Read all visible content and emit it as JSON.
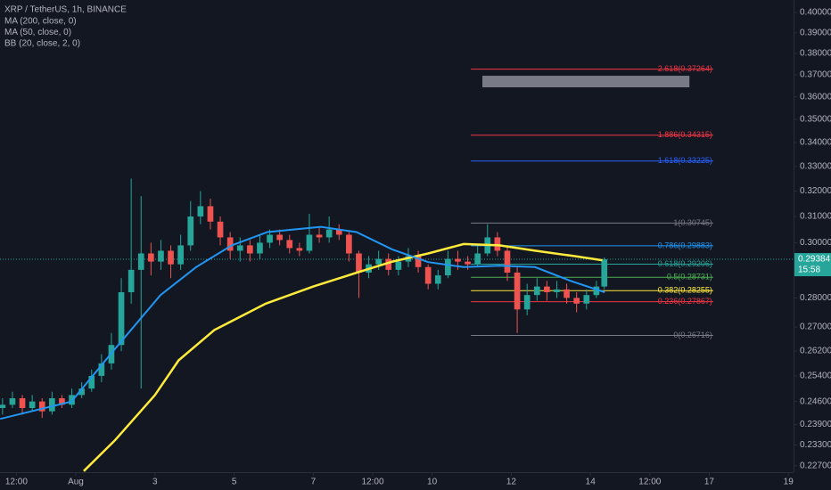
{
  "chart_data": {
    "type": "candlestick",
    "title": "XRP / TetherUS, 1h, BINANCE",
    "study_labels": [
      "BB (20, close, 2, 0)"
    ],
    "log_scale": true,
    "grid": false,
    "up_color": "#26a69a",
    "down_color": "#ef5350",
    "xlim": [
      -0.914,
      19.13
    ],
    "ylim": [
      0.2252,
      0.4063
    ],
    "xticks": [
      {
        "value": -0.5,
        "label": "12:00"
      },
      {
        "value": 1,
        "label": "Aug"
      },
      3,
      5,
      7,
      {
        "value": 8.5,
        "label": "12:00"
      },
      10,
      12,
      14,
      {
        "value": 15.5,
        "label": "12:00"
      },
      17,
      19
    ],
    "yticks": [
      {
        "value": 0.4,
        "label": "0.40000"
      },
      {
        "value": 0.39,
        "label": "0.39000"
      },
      {
        "value": 0.38,
        "label": "0.38000"
      },
      {
        "value": 0.37,
        "label": "0.37000"
      },
      {
        "value": 0.36,
        "label": "0.36000"
      },
      {
        "value": 0.35,
        "label": "0.35000"
      },
      {
        "value": 0.34,
        "label": "0.34000"
      },
      {
        "value": 0.33,
        "label": "0.33000"
      },
      {
        "value": 0.32,
        "label": "0.32000"
      },
      {
        "value": 0.31,
        "label": "0.31000"
      },
      {
        "value": 0.3,
        "label": "0.30000"
      },
      {
        "value": 0.28,
        "label": "0.28000"
      },
      {
        "value": 0.27,
        "label": "0.27000"
      },
      {
        "value": 0.262,
        "label": "0.26200"
      },
      {
        "value": 0.254,
        "label": "0.25400"
      },
      {
        "value": 0.246,
        "label": "0.24600"
      },
      {
        "value": 0.239,
        "label": "0.23900"
      },
      {
        "value": 0.233,
        "label": "0.23300"
      },
      {
        "value": 0.227,
        "label": "0.22700"
      }
    ],
    "x": [
      -0.85,
      -0.6,
      -0.35,
      -0.1,
      0.15,
      0.4,
      0.65,
      0.9,
      1.15,
      1.4,
      1.65,
      1.9,
      2.15,
      2.4,
      2.65,
      2.9,
      3.15,
      3.4,
      3.65,
      3.9,
      4.15,
      4.4,
      4.65,
      4.9,
      5.15,
      5.4,
      5.65,
      5.9,
      6.15,
      6.4,
      6.65,
      6.9,
      7.15,
      7.4,
      7.65,
      7.9,
      8.15,
      8.4,
      8.65,
      8.9,
      9.15,
      9.4,
      9.65,
      9.9,
      10.15,
      10.4,
      10.65,
      10.9,
      11.15,
      11.4,
      11.65,
      11.9,
      12.15,
      12.4,
      12.65,
      12.9,
      13.15,
      13.4,
      13.65,
      13.9,
      14.15,
      14.35
    ],
    "open": [
      0.244,
      0.245,
      0.247,
      0.244,
      0.246,
      0.243,
      0.247,
      0.245,
      0.248,
      0.25,
      0.254,
      0.258,
      0.264,
      0.282,
      0.29,
      0.296,
      0.293,
      0.297,
      0.292,
      0.299,
      0.31,
      0.314,
      0.308,
      0.302,
      0.297,
      0.299,
      0.296,
      0.3,
      0.303,
      0.301,
      0.298,
      0.297,
      0.303,
      0.302,
      0.305,
      0.303,
      0.296,
      0.289,
      0.292,
      0.294,
      0.29,
      0.293,
      0.295,
      0.291,
      0.285,
      0.288,
      0.294,
      0.293,
      0.292,
      0.296,
      0.302,
      0.297,
      0.289,
      0.276,
      0.281,
      0.284,
      0.282,
      0.283,
      0.28,
      0.278,
      0.281,
      0.284
    ],
    "high": [
      0.247,
      0.249,
      0.248,
      0.248,
      0.247,
      0.249,
      0.248,
      0.25,
      0.252,
      0.256,
      0.261,
      0.268,
      0.287,
      0.325,
      0.318,
      0.3,
      0.301,
      0.299,
      0.303,
      0.316,
      0.32,
      0.317,
      0.31,
      0.304,
      0.302,
      0.301,
      0.303,
      0.305,
      0.305,
      0.303,
      0.3,
      0.311,
      0.306,
      0.31,
      0.307,
      0.304,
      0.297,
      0.295,
      0.297,
      0.296,
      0.295,
      0.298,
      0.297,
      0.292,
      0.29,
      0.297,
      0.297,
      0.295,
      0.299,
      0.307,
      0.304,
      0.299,
      0.291,
      0.285,
      0.287,
      0.286,
      0.286,
      0.285,
      0.282,
      0.283,
      0.286,
      0.2945
    ],
    "low": [
      0.242,
      0.244,
      0.242,
      0.243,
      0.241,
      0.242,
      0.244,
      0.244,
      0.247,
      0.249,
      0.252,
      0.256,
      0.262,
      0.278,
      0.25,
      0.288,
      0.29,
      0.287,
      0.29,
      0.297,
      0.307,
      0.305,
      0.299,
      0.294,
      0.293,
      0.293,
      0.294,
      0.298,
      0.299,
      0.296,
      0.295,
      0.296,
      0.3,
      0.3,
      0.301,
      0.293,
      0.28,
      0.287,
      0.29,
      0.288,
      0.288,
      0.291,
      0.289,
      0.283,
      0.283,
      0.287,
      0.29,
      0.29,
      0.291,
      0.295,
      0.295,
      0.286,
      0.268,
      0.274,
      0.279,
      0.279,
      0.28,
      0.278,
      0.275,
      0.276,
      0.28,
      0.283
    ],
    "close": [
      0.245,
      0.247,
      0.244,
      0.246,
      0.243,
      0.247,
      0.245,
      0.248,
      0.25,
      0.254,
      0.258,
      0.264,
      0.282,
      0.29,
      0.296,
      0.293,
      0.297,
      0.292,
      0.299,
      0.31,
      0.314,
      0.308,
      0.302,
      0.297,
      0.299,
      0.296,
      0.3,
      0.303,
      0.301,
      0.298,
      0.297,
      0.303,
      0.302,
      0.305,
      0.303,
      0.296,
      0.289,
      0.292,
      0.294,
      0.29,
      0.293,
      0.295,
      0.291,
      0.285,
      0.288,
      0.294,
      0.293,
      0.292,
      0.296,
      0.302,
      0.297,
      0.289,
      0.276,
      0.281,
      0.284,
      0.282,
      0.283,
      0.28,
      0.278,
      0.281,
      0.284,
      0.2938
    ],
    "series": [
      {
        "name": "MA (200, close, 0)",
        "color": "#ffeb3b",
        "x": [
          1.2,
          2.0,
          3.0,
          3.6,
          4.5,
          5.8,
          7.0,
          8.1,
          9.0,
          9.9,
          10.8,
          11.7,
          12.6,
          13.6,
          14.3
        ],
        "values": [
          0.2255,
          0.2345,
          0.248,
          0.259,
          0.269,
          0.278,
          0.284,
          0.289,
          0.293,
          0.296,
          0.2995,
          0.299,
          0.297,
          0.295,
          0.2935
        ]
      },
      {
        "name": "MA (50, close, 0)",
        "color": "#2196f3",
        "x": [
          -0.91,
          0.89,
          2.01,
          3.14,
          4.04,
          4.94,
          5.84,
          7.19,
          8.09,
          8.99,
          9.9,
          10.8,
          11.7,
          12.6,
          13.5,
          14.36
        ],
        "values": [
          0.2407,
          0.246,
          0.263,
          0.281,
          0.291,
          0.299,
          0.304,
          0.306,
          0.304,
          0.2975,
          0.2928,
          0.291,
          0.2915,
          0.291,
          0.286,
          0.282
        ]
      }
    ],
    "fib_xlim": [
      10.98,
      17.1
    ],
    "fib_levels": [
      {
        "value": 0.37264,
        "label": "2.618(0.37264)",
        "color": "#f23645"
      },
      {
        "value": 0.34315,
        "label": "1.886(0.34315)",
        "color": "#f23645"
      },
      {
        "value": 0.33225,
        "label": "1.618(0.33225)",
        "color": "#2962ff"
      },
      {
        "value": 0.30745,
        "label": "1(0.30745)",
        "color": "#787b86"
      },
      {
        "value": 0.29883,
        "label": "0.786(0.29883)",
        "color": "#2196f3"
      },
      {
        "value": 0.29206,
        "label": "0.618(0.29206)",
        "color": "#26a69a"
      },
      {
        "value": 0.28731,
        "label": "0.5(0.28731)",
        "color": "#4caf50"
      },
      {
        "value": 0.28255,
        "label": "0.382(0.28255)",
        "color": "#ffeb3b"
      },
      {
        "value": 0.27867,
        "label": "0.236(0.27867)",
        "color": "#f23645"
      },
      {
        "value": 0.26716,
        "label": "0(0.26716)",
        "color": "#787b86"
      }
    ],
    "box": {
      "xlim": [
        11.27,
        16.5
      ],
      "ylim": [
        0.3643,
        0.3696
      ],
      "color": "#787b86"
    },
    "last_price": {
      "value": 0.29384,
      "label": "0.29384",
      "color": "#26a69a"
    },
    "countdown": "15:58"
  }
}
